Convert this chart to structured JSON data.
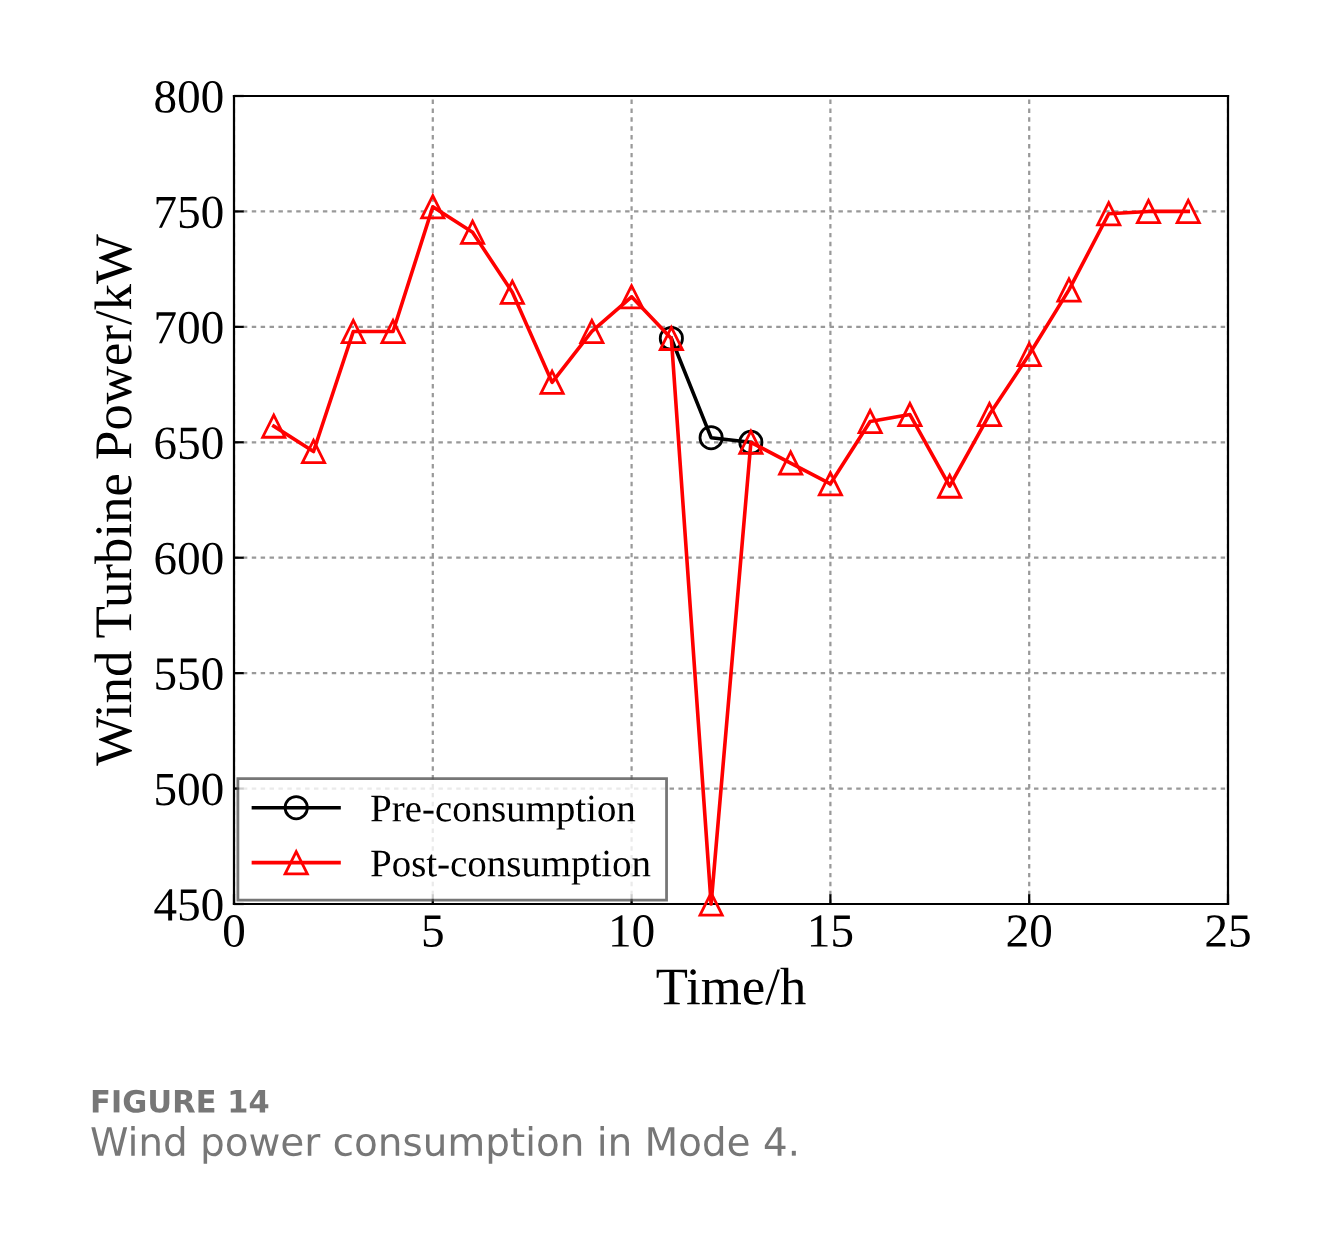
{
  "chart_data": {
    "type": "line",
    "xlabel": "Time/h",
    "ylabel": "Wind Turbine Power/kW",
    "x": [
      1,
      2,
      3,
      4,
      5,
      6,
      7,
      8,
      9,
      10,
      11,
      12,
      13,
      14,
      15,
      16,
      17,
      18,
      19,
      20,
      21,
      22,
      23,
      24
    ],
    "series": [
      {
        "name": "Pre-consumption",
        "color": "#000000",
        "marker": "circle",
        "values": [
          null,
          null,
          null,
          null,
          null,
          null,
          null,
          null,
          null,
          null,
          695,
          652,
          650,
          null,
          null,
          null,
          null,
          null,
          null,
          null,
          null,
          null,
          null,
          null
        ]
      },
      {
        "name": "Post-consumption",
        "color": "#ff0000",
        "marker": "triangle",
        "values": [
          657,
          646,
          698,
          698,
          752,
          741,
          715,
          676,
          698,
          713,
          695,
          450,
          650,
          641,
          632,
          659,
          662,
          631,
          662,
          688,
          716,
          749,
          750,
          750
        ]
      }
    ],
    "xlim": [
      0,
      25
    ],
    "xticks": [
      0,
      5,
      10,
      15,
      20,
      25
    ],
    "ylim": [
      450,
      800
    ],
    "yticks": [
      450,
      500,
      550,
      600,
      650,
      700,
      750,
      800
    ],
    "grid": true,
    "legend": "bottom left",
    "line_style": "solid",
    "annotations": [
      "FIGURE 14",
      "Wind power consumption in Mode 4."
    ]
  }
}
